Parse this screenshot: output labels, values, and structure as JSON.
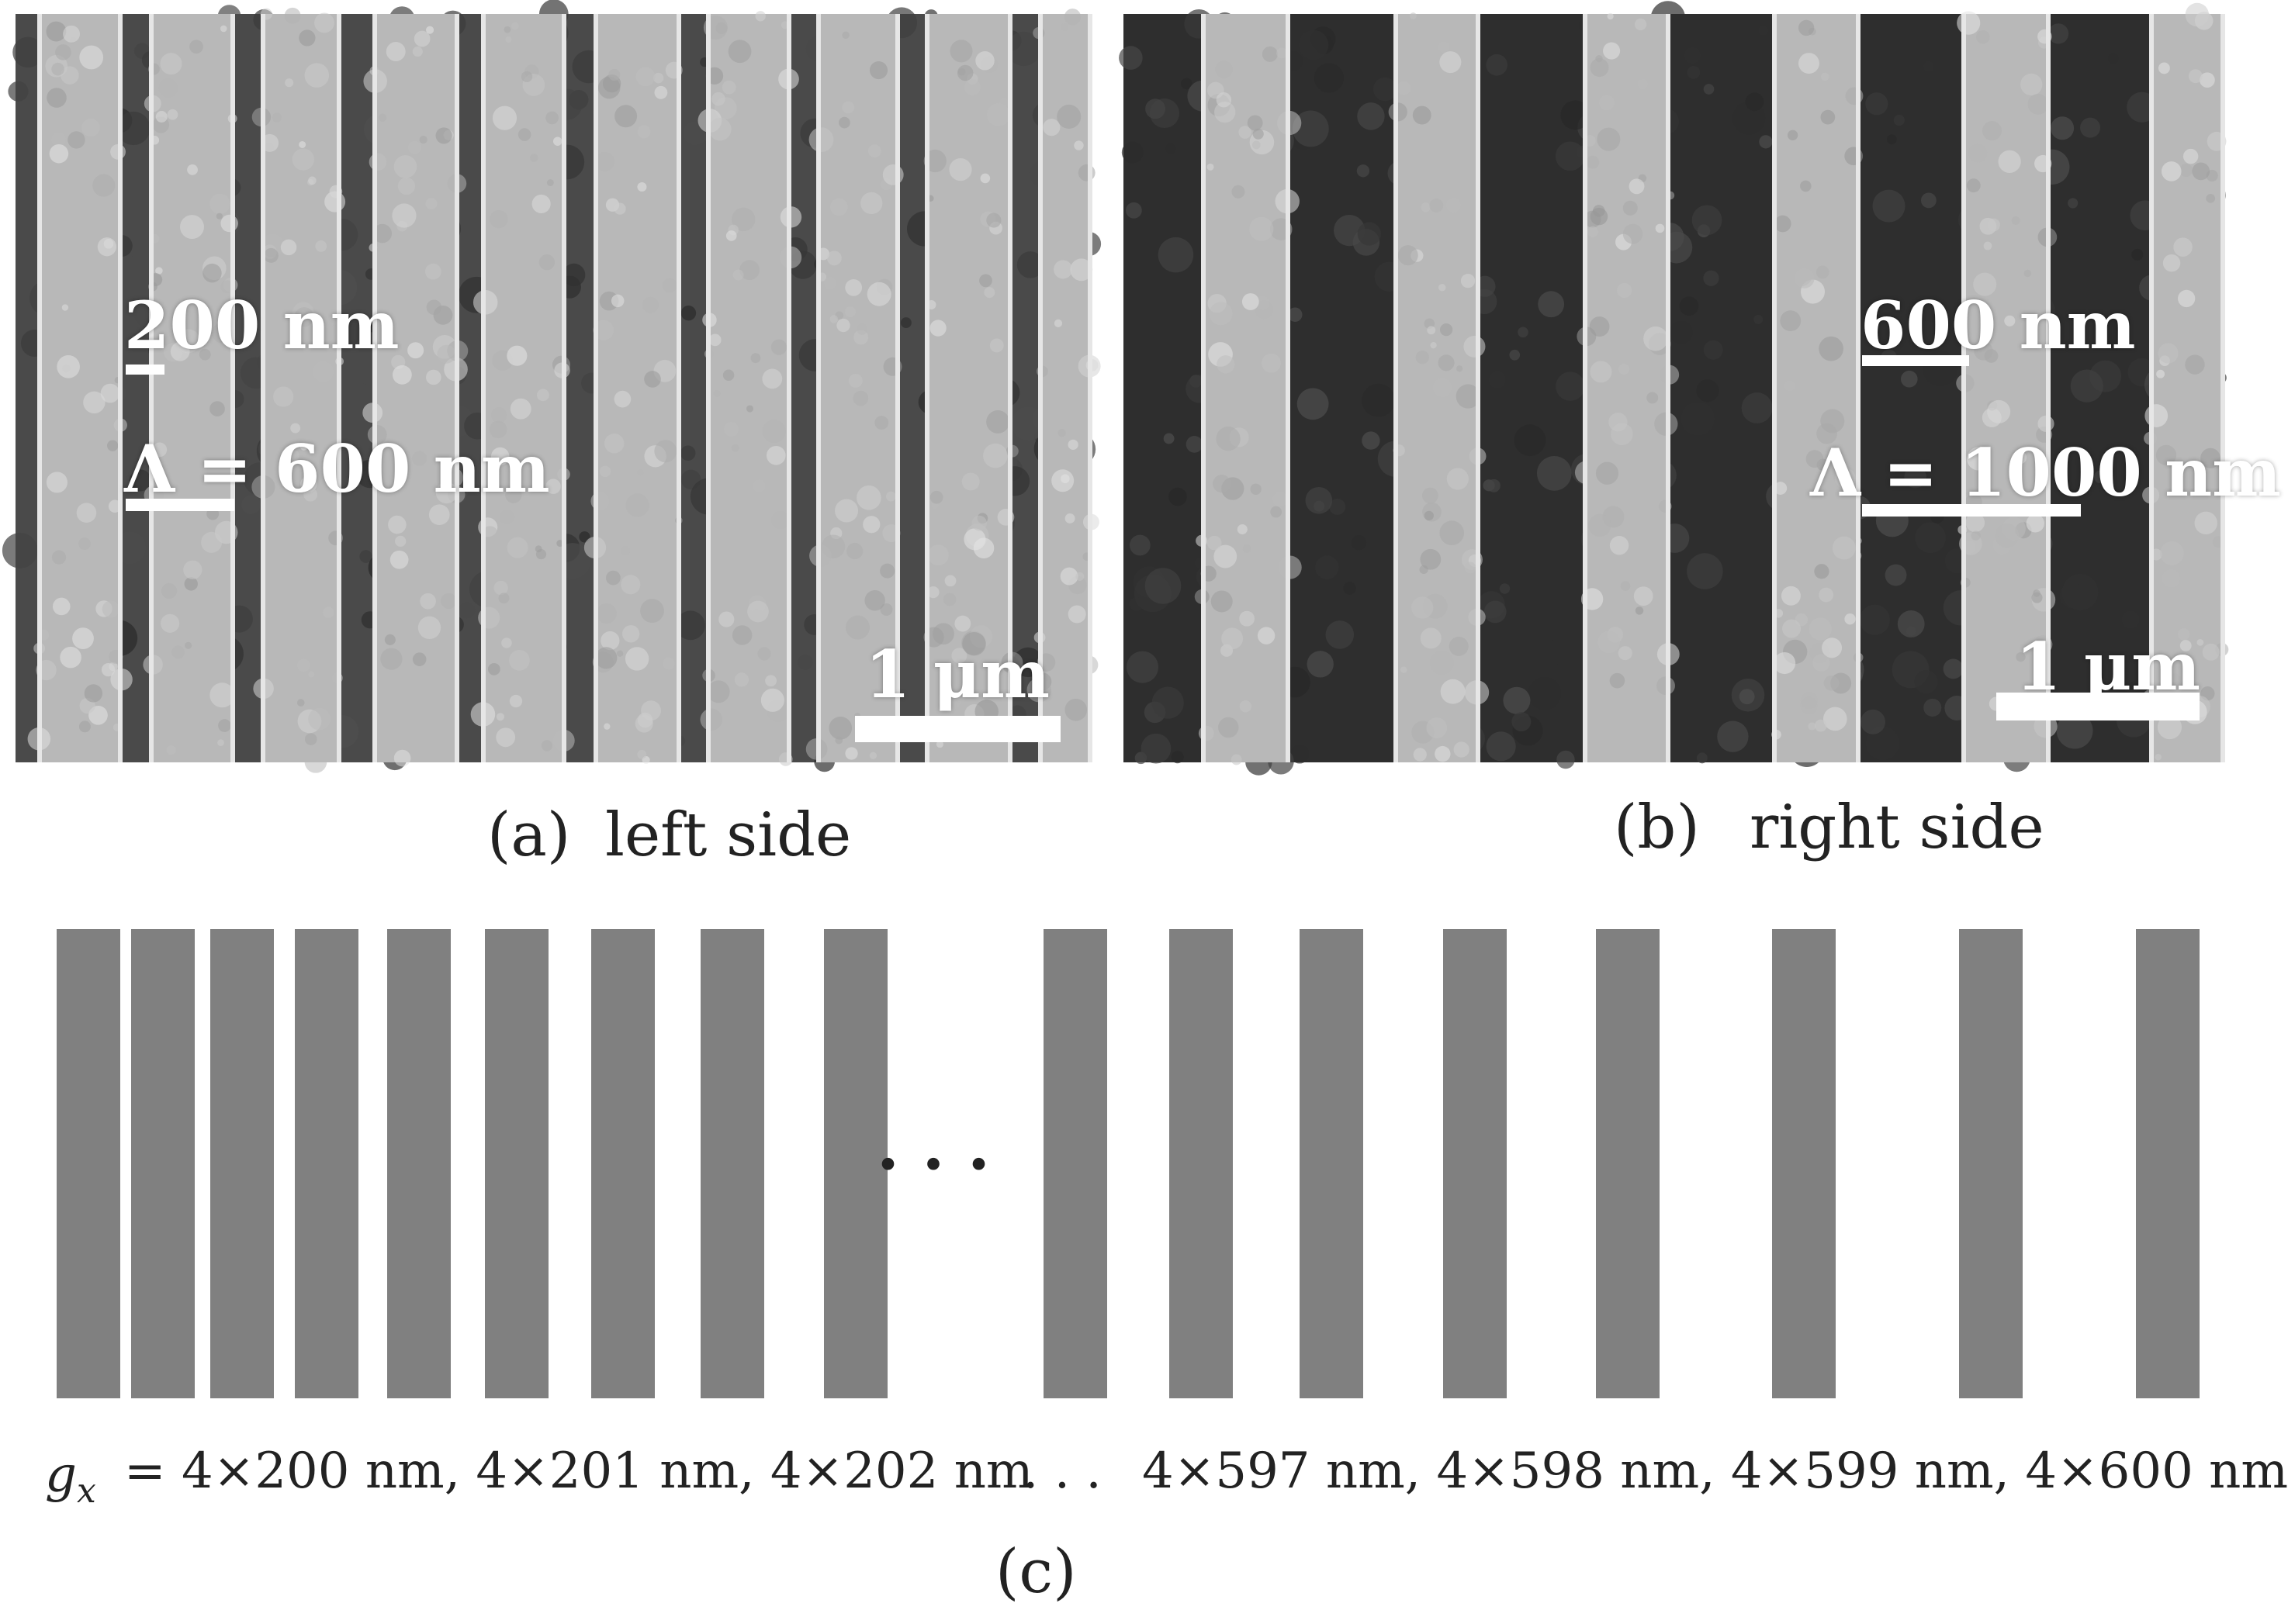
{
  "panel_a": {
    "caption_letter": "(a)",
    "caption_text": "left side",
    "label_width": "200 nm",
    "label_period": "Λ = 600 nm",
    "scale_bar": "1 μm"
  },
  "panel_b": {
    "caption_letter": "(b)",
    "caption_text": "right side",
    "label_width": "600 nm",
    "label_period": "Λ = 1000 nm",
    "scale_bar": "1 μm"
  },
  "panel_c": {
    "caption": "(c)",
    "ellipsis": "· · ·",
    "gx_symbol": "g",
    "gx_subscript": "x",
    "gx_values_left": "= 4×200 nm, 4×201 nm, 4×202 nm",
    "gx_ellipsis": ". . .",
    "gx_values_right": "4×597 nm, 4×598 nm, 4×599 nm, 4×600 nm",
    "bar_color": "#808080"
  },
  "colors": {
    "sem_ridge": "#b8b8b8",
    "sem_groove_a": "#4a4a4a",
    "sem_groove_b": "#2e2e2e"
  }
}
